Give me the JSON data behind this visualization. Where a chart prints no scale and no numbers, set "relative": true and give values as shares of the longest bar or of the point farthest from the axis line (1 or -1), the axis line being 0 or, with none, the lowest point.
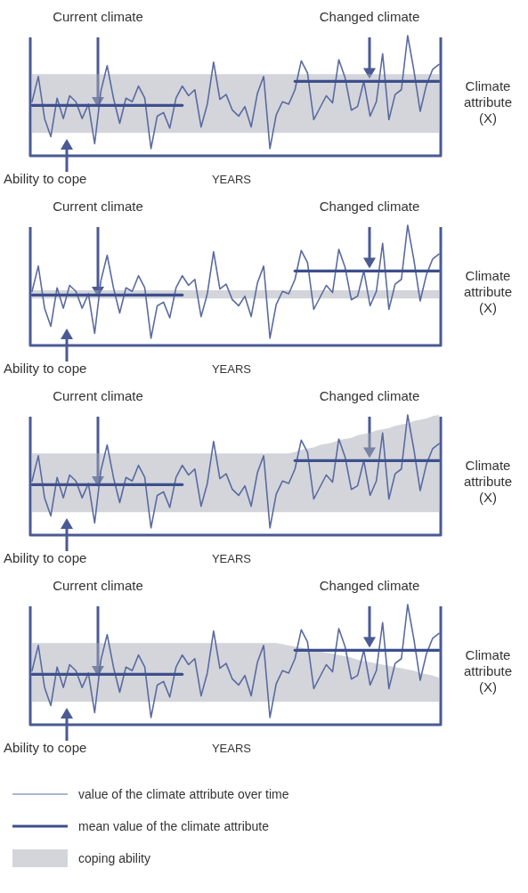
{
  "chart_data": [
    {
      "type": "line",
      "relative": true,
      "xlabel": "YEARS",
      "ylabel": "Climate attribute (X)",
      "annotations": [
        "Current climate",
        "Changed climate",
        "Ability to cope"
      ],
      "categories": [
        null,
        null,
        null,
        null,
        null,
        null,
        null,
        null,
        null,
        null,
        null,
        null,
        null,
        null,
        null,
        null,
        null,
        null,
        null,
        null,
        null,
        null,
        null,
        null,
        null,
        null,
        null,
        null,
        null,
        null,
        null,
        null,
        null,
        null,
        null,
        null,
        null,
        null,
        null,
        null,
        null,
        null,
        null,
        null,
        null,
        null,
        null,
        null,
        null,
        null,
        null,
        null,
        null,
        null,
        null,
        null,
        null,
        null,
        null,
        null,
        null,
        null,
        null,
        null,
        null,
        null
      ],
      "series": [
        {
          "color": "#5a6aa0",
          "values": [
            0.45,
            0.66,
            0.31,
            0.16,
            0.48,
            0.31,
            0.5,
            0.45,
            0.31,
            0.43,
            0.1,
            0.54,
            0.75,
            0.48,
            0.27,
            0.48,
            0.45,
            0.58,
            0.48,
            0.06,
            0.33,
            0.36,
            0.23,
            0.48,
            0.58,
            0.5,
            0.55,
            0.24,
            0.43,
            0.78,
            0.47,
            0.51,
            0.38,
            0.33,
            0.41,
            0.24,
            0.52,
            0.66,
            0.06,
            0.34,
            0.45,
            0.43,
            0.55,
            0.79,
            0.69,
            0.3,
            0.4,
            0.5,
            0.44,
            0.8,
            0.65,
            0.38,
            0.41,
            0.62,
            0.33,
            0.45,
            0.85,
            0.3,
            0.51,
            0.55,
            1.0,
            0.71,
            0.37,
            0.59,
            0.72,
            0.76
          ],
          "upper": [
            0.68,
            0.68,
            0.68,
            0.68,
            0.68,
            0.68,
            0.68,
            0.68,
            0.68,
            0.68,
            0.68,
            0.68,
            0.68,
            0.68,
            0.68,
            0.68,
            0.68,
            0.68,
            0.68,
            0.68,
            0.68,
            0.68,
            0.68,
            0.68,
            0.68,
            0.68,
            0.68,
            0.68,
            0.68,
            0.68,
            0.68,
            0.68,
            0.68,
            0.68,
            0.68,
            0.68,
            0.68,
            0.68,
            0.68,
            0.68,
            0.68,
            0.68,
            0.68,
            0.68,
            0.68,
            0.68,
            0.68,
            0.68,
            0.68,
            0.68,
            0.68,
            0.68,
            0.68,
            0.68,
            0.68,
            0.68,
            0.68,
            0.68,
            0.68,
            0.68,
            0.68,
            0.68,
            0.68,
            0.68,
            0.68,
            0.68
          ],
          "lower": [
            0.19,
            0.19,
            0.19,
            0.19,
            0.19,
            0.19,
            0.19,
            0.19,
            0.19,
            0.19,
            0.19,
            0.19,
            0.19,
            0.19,
            0.19,
            0.19,
            0.19,
            0.19,
            0.19,
            0.19,
            0.19,
            0.19,
            0.19,
            0.19,
            0.19,
            0.19,
            0.19,
            0.19,
            0.19,
            0.19,
            0.19,
            0.19,
            0.19,
            0.19,
            0.19,
            0.19,
            0.19,
            0.19,
            0.19,
            0.19,
            0.19,
            0.19,
            0.19,
            0.19,
            0.19,
            0.19,
            0.19,
            0.19,
            0.19,
            0.19,
            0.19,
            0.19,
            0.19,
            0.19,
            0.19,
            0.19,
            0.19,
            0.19,
            0.19,
            0.19,
            0.19,
            0.19,
            0.19,
            0.19,
            0.19,
            0.19
          ]
        },
        {
          "color": "#3d4f8c",
          "values": [
            0.42,
            0.42,
            0.42,
            0.42,
            0.42,
            0.42,
            0.42,
            0.42,
            0.42,
            0.42,
            0.42,
            0.42,
            0.42,
            0.42,
            0.42,
            0.42,
            0.42,
            0.42,
            0.42,
            0.42,
            0.42,
            0.42,
            0.42,
            0.42,
            0.42,
            null,
            null,
            null,
            null,
            null,
            null,
            null,
            null,
            null,
            null,
            null,
            null,
            null,
            null,
            null,
            null,
            null,
            null,
            null,
            null,
            null,
            null,
            null,
            null,
            null,
            null,
            null,
            null,
            null,
            null,
            null,
            null,
            null,
            null,
            null,
            null,
            null,
            null,
            null,
            null,
            null
          ]
        },
        {
          "color": "#3d4f8c",
          "values": [
            null,
            null,
            null,
            null,
            null,
            null,
            null,
            null,
            null,
            null,
            null,
            null,
            null,
            null,
            null,
            null,
            null,
            null,
            null,
            null,
            null,
            null,
            null,
            null,
            null,
            null,
            null,
            null,
            null,
            null,
            null,
            null,
            null,
            null,
            null,
            null,
            null,
            null,
            null,
            null,
            null,
            null,
            0.62,
            0.62,
            0.62,
            0.62,
            0.62,
            0.62,
            0.62,
            0.62,
            0.62,
            0.62,
            0.62,
            0.62,
            0.62,
            0.62,
            0.62,
            0.62,
            0.62,
            0.62,
            0.62,
            0.62,
            0.62,
            0.62,
            0.62,
            0.62
          ]
        }
      ]
    },
    {
      "type": "line",
      "relative": true,
      "xlabel": "YEARS",
      "ylabel": "Climate attribute (X)",
      "annotations": [
        "Current climate",
        "Changed climate",
        "Ability to cope"
      ],
      "categories": [
        null,
        null,
        null,
        null,
        null,
        null,
        null,
        null,
        null,
        null,
        null,
        null,
        null,
        null,
        null,
        null,
        null,
        null,
        null,
        null,
        null,
        null,
        null,
        null,
        null,
        null,
        null,
        null,
        null,
        null,
        null,
        null,
        null,
        null,
        null,
        null,
        null,
        null,
        null,
        null,
        null,
        null,
        null,
        null,
        null,
        null,
        null,
        null,
        null,
        null,
        null,
        null,
        null,
        null,
        null,
        null,
        null,
        null,
        null,
        null,
        null,
        null,
        null,
        null,
        null,
        null
      ],
      "series": [
        {
          "color": "#5a6aa0",
          "values": [
            0.45,
            0.66,
            0.31,
            0.16,
            0.48,
            0.31,
            0.5,
            0.45,
            0.31,
            0.43,
            0.1,
            0.54,
            0.75,
            0.48,
            0.27,
            0.48,
            0.45,
            0.58,
            0.48,
            0.06,
            0.33,
            0.36,
            0.23,
            0.48,
            0.58,
            0.5,
            0.55,
            0.24,
            0.43,
            0.78,
            0.47,
            0.51,
            0.38,
            0.33,
            0.41,
            0.24,
            0.52,
            0.66,
            0.06,
            0.34,
            0.45,
            0.43,
            0.55,
            0.79,
            0.69,
            0.3,
            0.4,
            0.5,
            0.44,
            0.8,
            0.65,
            0.38,
            0.41,
            0.62,
            0.33,
            0.45,
            0.85,
            0.3,
            0.51,
            0.55,
            1.0,
            0.71,
            0.37,
            0.59,
            0.72,
            0.76
          ],
          "upper": [
            0.46,
            0.46,
            0.46,
            0.46,
            0.46,
            0.46,
            0.46,
            0.46,
            0.46,
            0.46,
            0.46,
            0.46,
            0.46,
            0.46,
            0.46,
            0.46,
            0.46,
            0.46,
            0.46,
            0.46,
            0.46,
            0.46,
            0.46,
            0.46,
            0.46,
            0.46,
            0.46,
            0.46,
            0.46,
            0.46,
            0.46,
            0.46,
            0.46,
            0.46,
            0.46,
            0.46,
            0.46,
            0.46,
            0.46,
            0.46,
            0.46,
            0.46,
            0.46,
            0.46,
            0.46,
            0.46,
            0.46,
            0.46,
            0.46,
            0.46,
            0.46,
            0.46,
            0.46,
            0.46,
            0.46,
            0.46,
            0.46,
            0.46,
            0.46,
            0.46,
            0.46,
            0.46,
            0.46,
            0.46,
            0.46,
            0.46
          ],
          "lower": [
            0.39,
            0.39,
            0.39,
            0.39,
            0.39,
            0.39,
            0.39,
            0.39,
            0.39,
            0.39,
            0.39,
            0.39,
            0.39,
            0.39,
            0.39,
            0.39,
            0.39,
            0.39,
            0.39,
            0.39,
            0.39,
            0.39,
            0.39,
            0.39,
            0.39,
            0.39,
            0.39,
            0.39,
            0.39,
            0.39,
            0.39,
            0.39,
            0.39,
            0.39,
            0.39,
            0.39,
            0.39,
            0.39,
            0.39,
            0.39,
            0.39,
            0.39,
            0.39,
            0.39,
            0.39,
            0.39,
            0.39,
            0.39,
            0.39,
            0.39,
            0.39,
            0.39,
            0.39,
            0.39,
            0.39,
            0.39,
            0.39,
            0.39,
            0.39,
            0.39,
            0.39,
            0.39,
            0.39,
            0.39,
            0.39,
            0.39
          ]
        },
        {
          "color": "#3d4f8c",
          "values": [
            0.42,
            0.42,
            0.42,
            0.42,
            0.42,
            0.42,
            0.42,
            0.42,
            0.42,
            0.42,
            0.42,
            0.42,
            0.42,
            0.42,
            0.42,
            0.42,
            0.42,
            0.42,
            0.42,
            0.42,
            0.42,
            0.42,
            0.42,
            0.42,
            0.42,
            null,
            null,
            null,
            null,
            null,
            null,
            null,
            null,
            null,
            null,
            null,
            null,
            null,
            null,
            null,
            null,
            null,
            null,
            null,
            null,
            null,
            null,
            null,
            null,
            null,
            null,
            null,
            null,
            null,
            null,
            null,
            null,
            null,
            null,
            null,
            null,
            null,
            null,
            null,
            null,
            null
          ]
        },
        {
          "color": "#3d4f8c",
          "values": [
            null,
            null,
            null,
            null,
            null,
            null,
            null,
            null,
            null,
            null,
            null,
            null,
            null,
            null,
            null,
            null,
            null,
            null,
            null,
            null,
            null,
            null,
            null,
            null,
            null,
            null,
            null,
            null,
            null,
            null,
            null,
            null,
            null,
            null,
            null,
            null,
            null,
            null,
            null,
            null,
            null,
            null,
            0.62,
            0.62,
            0.62,
            0.62,
            0.62,
            0.62,
            0.62,
            0.62,
            0.62,
            0.62,
            0.62,
            0.62,
            0.62,
            0.62,
            0.62,
            0.62,
            0.62,
            0.62,
            0.62,
            0.62,
            0.62,
            0.62,
            0.62,
            0.62
          ]
        }
      ]
    },
    {
      "type": "line",
      "relative": true,
      "xlabel": "YEARS",
      "ylabel": "Climate attribute (X)",
      "annotations": [
        "Current climate",
        "Changed climate",
        "Ability to cope"
      ],
      "categories": [
        null,
        null,
        null,
        null,
        null,
        null,
        null,
        null,
        null,
        null,
        null,
        null,
        null,
        null,
        null,
        null,
        null,
        null,
        null,
        null,
        null,
        null,
        null,
        null,
        null,
        null,
        null,
        null,
        null,
        null,
        null,
        null,
        null,
        null,
        null,
        null,
        null,
        null,
        null,
        null,
        null,
        null,
        null,
        null,
        null,
        null,
        null,
        null,
        null,
        null,
        null,
        null,
        null,
        null,
        null,
        null,
        null,
        null,
        null,
        null,
        null,
        null,
        null,
        null,
        null,
        null
      ],
      "series": [
        {
          "color": "#5a6aa0",
          "values": [
            0.45,
            0.66,
            0.31,
            0.16,
            0.48,
            0.31,
            0.5,
            0.45,
            0.31,
            0.43,
            0.1,
            0.54,
            0.75,
            0.48,
            0.27,
            0.48,
            0.45,
            0.58,
            0.48,
            0.06,
            0.33,
            0.36,
            0.23,
            0.48,
            0.58,
            0.5,
            0.55,
            0.24,
            0.43,
            0.78,
            0.47,
            0.51,
            0.38,
            0.33,
            0.41,
            0.24,
            0.52,
            0.66,
            0.06,
            0.34,
            0.45,
            0.43,
            0.55,
            0.79,
            0.69,
            0.3,
            0.4,
            0.5,
            0.44,
            0.8,
            0.65,
            0.38,
            0.41,
            0.62,
            0.33,
            0.45,
            0.85,
            0.3,
            0.51,
            0.55,
            1.0,
            0.71,
            0.37,
            0.59,
            0.72,
            0.76
          ],
          "upper": [
            0.68,
            0.68,
            0.68,
            0.68,
            0.68,
            0.68,
            0.68,
            0.68,
            0.68,
            0.68,
            0.68,
            0.68,
            0.68,
            0.68,
            0.68,
            0.68,
            0.68,
            0.68,
            0.68,
            0.68,
            0.68,
            0.68,
            0.68,
            0.68,
            0.68,
            0.68,
            0.68,
            0.68,
            0.68,
            0.68,
            0.68,
            0.68,
            0.68,
            0.68,
            0.68,
            0.68,
            0.68,
            0.68,
            0.68,
            0.68,
            0.68,
            0.68,
            0.69,
            0.71,
            0.72,
            0.73,
            0.75,
            0.76,
            0.77,
            0.79,
            0.8,
            0.81,
            0.83,
            0.84,
            0.85,
            0.87,
            0.88,
            0.89,
            0.91,
            0.92,
            0.93,
            0.95,
            0.96,
            0.97,
            0.99,
            1.0
          ],
          "lower": [
            0.19,
            0.19,
            0.19,
            0.19,
            0.19,
            0.19,
            0.19,
            0.19,
            0.19,
            0.19,
            0.19,
            0.19,
            0.19,
            0.19,
            0.19,
            0.19,
            0.19,
            0.19,
            0.19,
            0.19,
            0.19,
            0.19,
            0.19,
            0.19,
            0.19,
            0.19,
            0.19,
            0.19,
            0.19,
            0.19,
            0.19,
            0.19,
            0.19,
            0.19,
            0.19,
            0.19,
            0.19,
            0.19,
            0.19,
            0.19,
            0.19,
            0.19,
            0.19,
            0.19,
            0.19,
            0.19,
            0.19,
            0.19,
            0.19,
            0.19,
            0.19,
            0.19,
            0.19,
            0.19,
            0.19,
            0.19,
            0.19,
            0.19,
            0.19,
            0.19,
            0.19,
            0.19,
            0.19,
            0.19,
            0.19,
            0.19
          ]
        },
        {
          "color": "#3d4f8c",
          "values": [
            0.42,
            0.42,
            0.42,
            0.42,
            0.42,
            0.42,
            0.42,
            0.42,
            0.42,
            0.42,
            0.42,
            0.42,
            0.42,
            0.42,
            0.42,
            0.42,
            0.42,
            0.42,
            0.42,
            0.42,
            0.42,
            0.42,
            0.42,
            0.42,
            0.42,
            null,
            null,
            null,
            null,
            null,
            null,
            null,
            null,
            null,
            null,
            null,
            null,
            null,
            null,
            null,
            null,
            null,
            null,
            null,
            null,
            null,
            null,
            null,
            null,
            null,
            null,
            null,
            null,
            null,
            null,
            null,
            null,
            null,
            null,
            null,
            null,
            null,
            null,
            null,
            null,
            null
          ]
        },
        {
          "color": "#3d4f8c",
          "values": [
            null,
            null,
            null,
            null,
            null,
            null,
            null,
            null,
            null,
            null,
            null,
            null,
            null,
            null,
            null,
            null,
            null,
            null,
            null,
            null,
            null,
            null,
            null,
            null,
            null,
            null,
            null,
            null,
            null,
            null,
            null,
            null,
            null,
            null,
            null,
            null,
            null,
            null,
            null,
            null,
            null,
            null,
            0.62,
            0.62,
            0.62,
            0.62,
            0.62,
            0.62,
            0.62,
            0.62,
            0.62,
            0.62,
            0.62,
            0.62,
            0.62,
            0.62,
            0.62,
            0.62,
            0.62,
            0.62,
            0.62,
            0.62,
            0.62,
            0.62,
            0.62,
            0.62
          ]
        }
      ]
    },
    {
      "type": "line",
      "relative": true,
      "xlabel": "YEARS",
      "ylabel": "Climate attribute (X)",
      "annotations": [
        "Current climate",
        "Changed climate",
        "Ability to cope",
        "coping ability"
      ],
      "legend": "bottom",
      "categories": [
        null,
        null,
        null,
        null,
        null,
        null,
        null,
        null,
        null,
        null,
        null,
        null,
        null,
        null,
        null,
        null,
        null,
        null,
        null,
        null,
        null,
        null,
        null,
        null,
        null,
        null,
        null,
        null,
        null,
        null,
        null,
        null,
        null,
        null,
        null,
        null,
        null,
        null,
        null,
        null,
        null,
        null,
        null,
        null,
        null,
        null,
        null,
        null,
        null,
        null,
        null,
        null,
        null,
        null,
        null,
        null,
        null,
        null,
        null,
        null,
        null,
        null,
        null,
        null,
        null,
        null
      ],
      "series": [
        {
          "name": "value of the climate attribute over time",
          "color": "#5a6aa0",
          "values": [
            0.45,
            0.66,
            0.31,
            0.16,
            0.48,
            0.31,
            0.5,
            0.45,
            0.31,
            0.43,
            0.1,
            0.54,
            0.75,
            0.48,
            0.27,
            0.48,
            0.45,
            0.58,
            0.48,
            0.06,
            0.33,
            0.36,
            0.23,
            0.48,
            0.58,
            0.5,
            0.55,
            0.24,
            0.43,
            0.78,
            0.47,
            0.51,
            0.38,
            0.33,
            0.41,
            0.24,
            0.52,
            0.66,
            0.06,
            0.34,
            0.45,
            0.43,
            0.55,
            0.79,
            0.69,
            0.3,
            0.4,
            0.5,
            0.44,
            0.8,
            0.65,
            0.38,
            0.41,
            0.62,
            0.33,
            0.45,
            0.85,
            0.3,
            0.51,
            0.55,
            1.0,
            0.71,
            0.37,
            0.59,
            0.72,
            0.76
          ],
          "upper": [
            0.68,
            0.68,
            0.68,
            0.68,
            0.68,
            0.68,
            0.68,
            0.68,
            0.68,
            0.68,
            0.68,
            0.68,
            0.68,
            0.68,
            0.68,
            0.68,
            0.68,
            0.68,
            0.68,
            0.68,
            0.68,
            0.68,
            0.68,
            0.68,
            0.68,
            0.68,
            0.68,
            0.68,
            0.68,
            0.68,
            0.68,
            0.68,
            0.68,
            0.68,
            0.68,
            0.68,
            0.68,
            0.68,
            0.68,
            0.68,
            0.67,
            0.66,
            0.65,
            0.64,
            0.63,
            0.62,
            0.61,
            0.6,
            0.59,
            0.58,
            0.57,
            0.56,
            0.54,
            0.53,
            0.52,
            0.51,
            0.5,
            0.49,
            0.48,
            0.47,
            0.46,
            0.45,
            0.43,
            0.42,
            0.41,
            0.39
          ],
          "lower": [
            0.19,
            0.19,
            0.19,
            0.19,
            0.19,
            0.19,
            0.19,
            0.19,
            0.19,
            0.19,
            0.19,
            0.19,
            0.19,
            0.19,
            0.19,
            0.19,
            0.19,
            0.19,
            0.19,
            0.19,
            0.19,
            0.19,
            0.19,
            0.19,
            0.19,
            0.19,
            0.19,
            0.19,
            0.19,
            0.19,
            0.19,
            0.19,
            0.19,
            0.19,
            0.19,
            0.19,
            0.19,
            0.19,
            0.19,
            0.19,
            0.19,
            0.19,
            0.19,
            0.19,
            0.19,
            0.19,
            0.19,
            0.19,
            0.19,
            0.19,
            0.19,
            0.19,
            0.19,
            0.19,
            0.19,
            0.19,
            0.19,
            0.19,
            0.19,
            0.19,
            0.19,
            0.19,
            0.19,
            0.19,
            0.19,
            0.19
          ]
        },
        {
          "name": "mean value of the climate attribute",
          "color": "#3d4f8c",
          "values": [
            0.42,
            0.42,
            0.42,
            0.42,
            0.42,
            0.42,
            0.42,
            0.42,
            0.42,
            0.42,
            0.42,
            0.42,
            0.42,
            0.42,
            0.42,
            0.42,
            0.42,
            0.42,
            0.42,
            0.42,
            0.42,
            0.42,
            0.42,
            0.42,
            0.42,
            null,
            null,
            null,
            null,
            null,
            null,
            null,
            null,
            null,
            null,
            null,
            null,
            null,
            null,
            null,
            null,
            null,
            null,
            null,
            null,
            null,
            null,
            null,
            null,
            null,
            null,
            null,
            null,
            null,
            null,
            null,
            null,
            null,
            null,
            null,
            null,
            null,
            null,
            null,
            null,
            null
          ]
        },
        {
          "color": "#3d4f8c",
          "values": [
            null,
            null,
            null,
            null,
            null,
            null,
            null,
            null,
            null,
            null,
            null,
            null,
            null,
            null,
            null,
            null,
            null,
            null,
            null,
            null,
            null,
            null,
            null,
            null,
            null,
            null,
            null,
            null,
            null,
            null,
            null,
            null,
            null,
            null,
            null,
            null,
            null,
            null,
            null,
            null,
            null,
            null,
            0.62,
            0.62,
            0.62,
            0.62,
            0.62,
            0.62,
            0.62,
            0.62,
            0.62,
            0.62,
            0.62,
            0.62,
            0.62,
            0.62,
            0.62,
            0.62,
            0.62,
            0.62,
            0.62,
            0.62,
            0.62,
            0.62,
            0.62,
            0.62
          ]
        }
      ]
    }
  ]
}
